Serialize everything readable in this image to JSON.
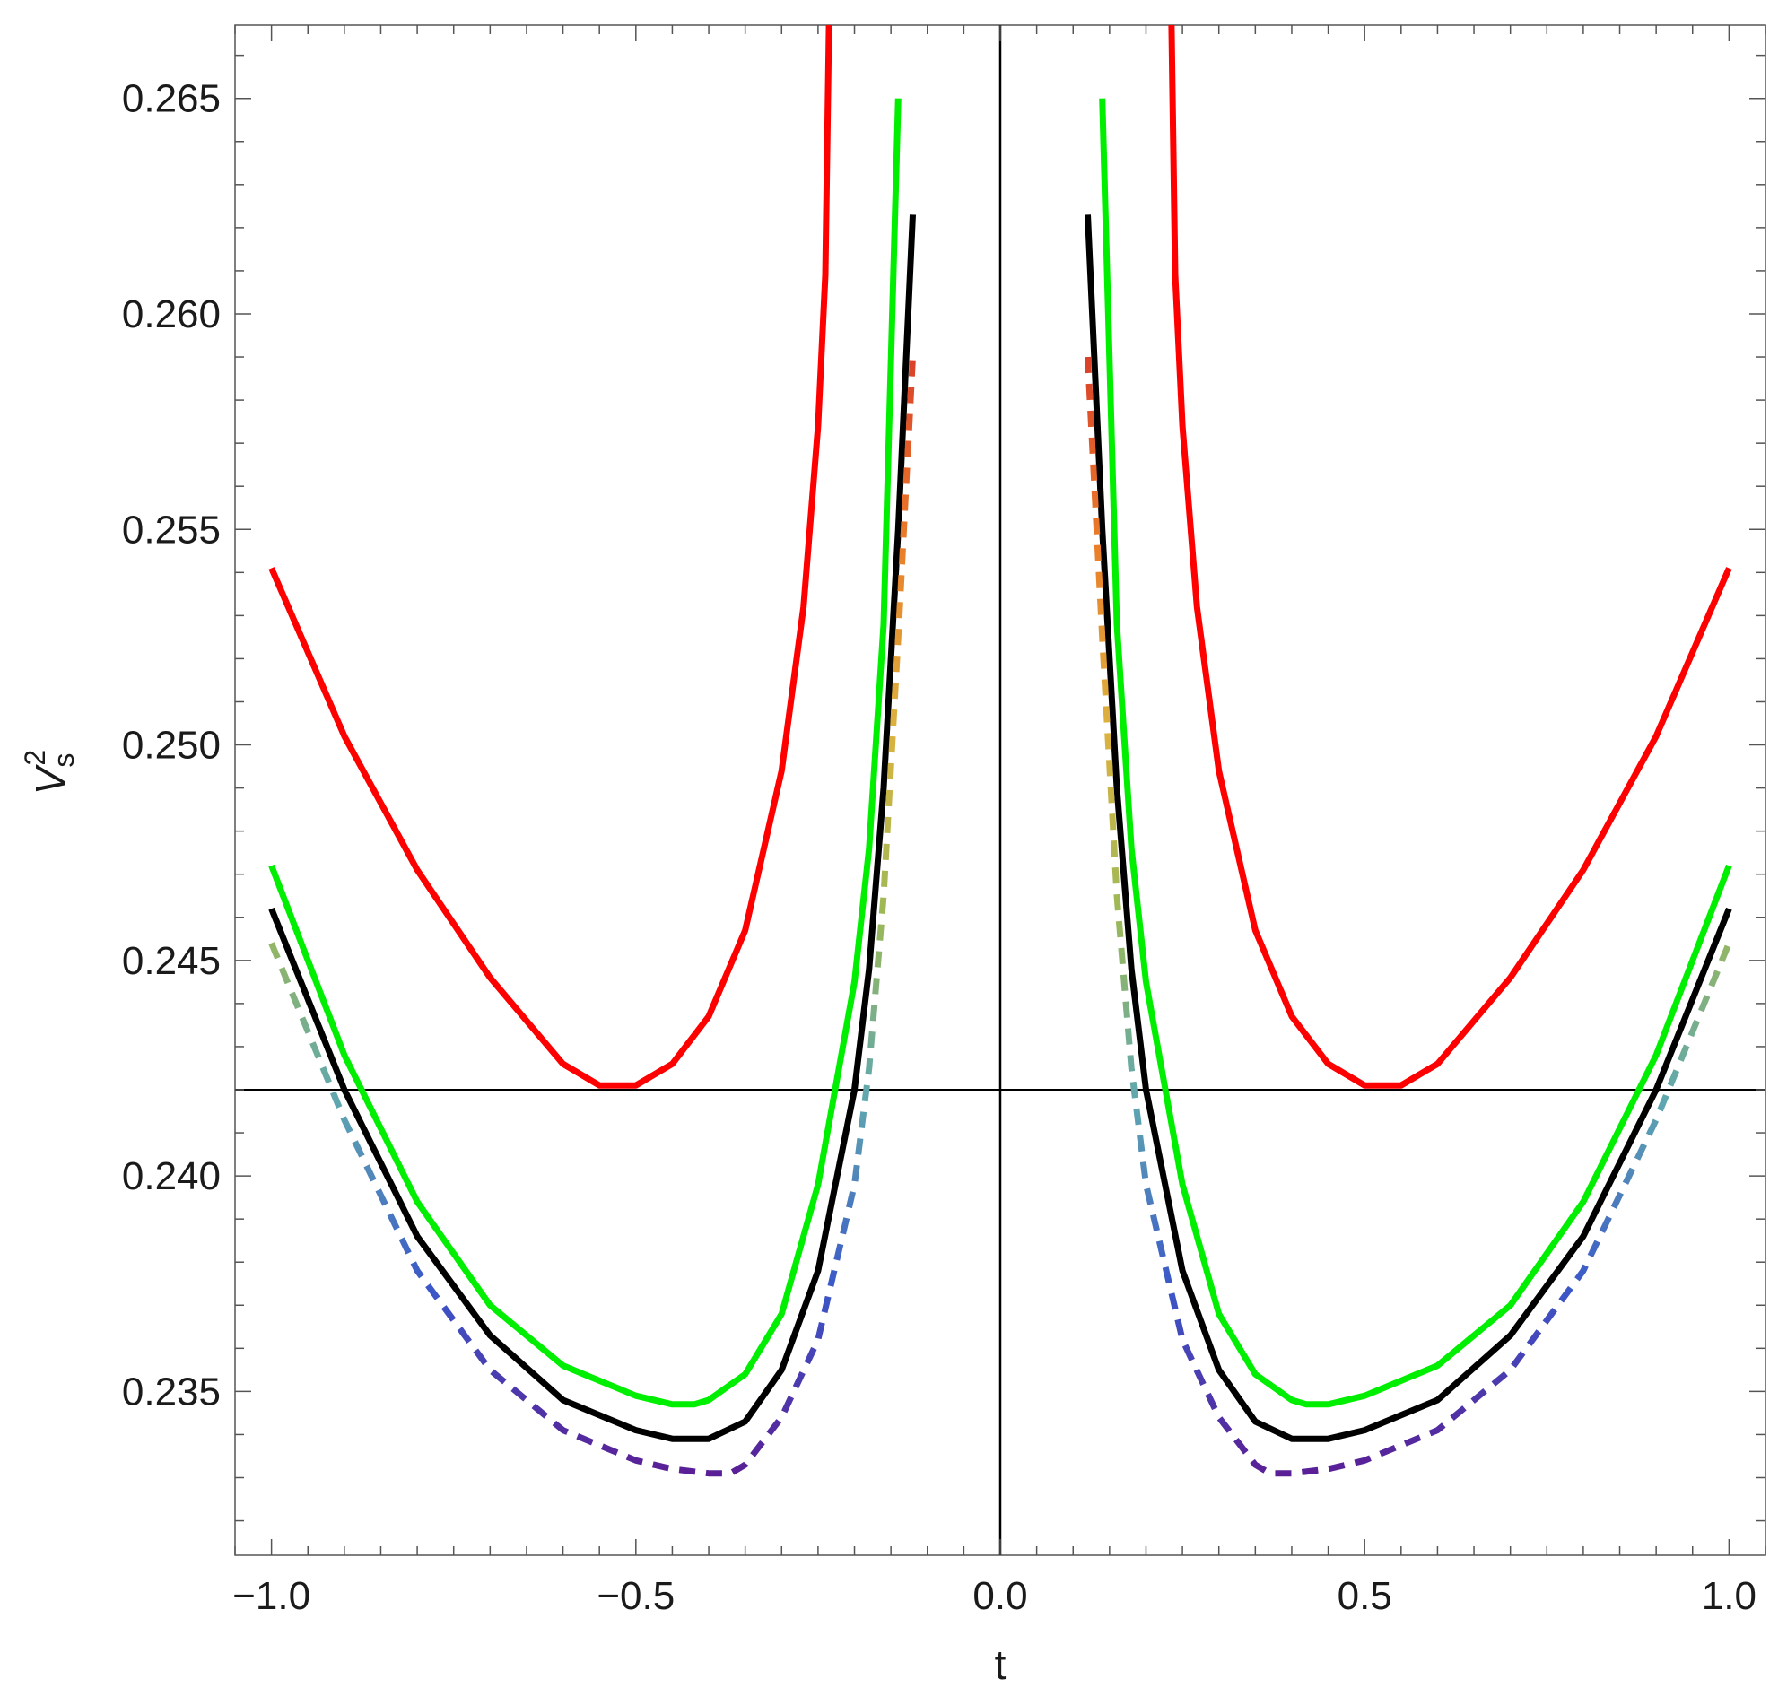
{
  "chart_data": {
    "type": "line",
    "title": "",
    "xlabel": "t",
    "ylabel": {
      "base": "V",
      "sub": "s",
      "sup": "2"
    },
    "xlim": [
      -1.05,
      1.05
    ],
    "ylim": [
      0.2312,
      0.2667
    ],
    "xticks": [
      -1.0,
      -0.5,
      0.0,
      0.5,
      1.0
    ],
    "xtick_labels": [
      "−1.0",
      "−0.5",
      "0.0",
      "0.5",
      "1.0"
    ],
    "yticks": [
      0.235,
      0.24,
      0.245,
      0.25,
      0.255,
      0.26,
      0.265
    ],
    "ytick_labels": [
      "0.235",
      "0.240",
      "0.245",
      "0.250",
      "0.255",
      "0.260",
      "0.265"
    ],
    "reference_lines": [
      {
        "orientation": "horizontal",
        "value": 0.242,
        "color": "#000000"
      },
      {
        "orientation": "vertical",
        "value": 0.0,
        "color": "#000000"
      }
    ],
    "grid": false,
    "legend": "none",
    "series": [
      {
        "color": "#ff0000",
        "style": "solid",
        "x": [
          -1.0,
          -0.9,
          -0.8,
          -0.7,
          -0.6,
          -0.55,
          -0.5,
          -0.45,
          -0.4,
          -0.35,
          -0.3,
          -0.27,
          -0.25,
          -0.24,
          -0.235
        ],
        "y": [
          0.2541,
          0.2502,
          0.2471,
          0.2446,
          0.2426,
          0.2421,
          0.2421,
          0.2426,
          0.2437,
          0.2457,
          0.2494,
          0.2532,
          0.2574,
          0.2609,
          0.2668
        ],
        "mirror": true
      },
      {
        "color": "#00ee00",
        "style": "solid",
        "x": [
          -1.0,
          -0.9,
          -0.8,
          -0.7,
          -0.6,
          -0.5,
          -0.45,
          -0.42,
          -0.4,
          -0.35,
          -0.3,
          -0.25,
          -0.2,
          -0.18,
          -0.16,
          -0.14
        ],
        "y": [
          0.2472,
          0.2428,
          0.2394,
          0.237,
          0.2356,
          0.2349,
          0.2347,
          0.2347,
          0.2348,
          0.2354,
          0.2368,
          0.2398,
          0.2445,
          0.2476,
          0.2528,
          0.265
        ],
        "mirror": true
      },
      {
        "color": "#000000",
        "style": "solid",
        "x": [
          -1.0,
          -0.9,
          -0.8,
          -0.7,
          -0.6,
          -0.5,
          -0.45,
          -0.4,
          -0.35,
          -0.3,
          -0.25,
          -0.2,
          -0.18,
          -0.16,
          -0.14,
          -0.12
        ],
        "y": [
          0.2462,
          0.242,
          0.2386,
          0.2363,
          0.2348,
          0.2341,
          0.2339,
          0.2339,
          0.2343,
          0.2355,
          0.2378,
          0.242,
          0.2448,
          0.249,
          0.255,
          0.2623
        ],
        "mirror": true
      },
      {
        "color": "gradient",
        "style": "dashed",
        "gradient": [
          "#5a1f96",
          "#3b58c8",
          "#5fa7b0",
          "#9cb957",
          "#dcb23f",
          "#ea7d2a",
          "#d9402a"
        ],
        "x": [
          -1.0,
          -0.9,
          -0.8,
          -0.7,
          -0.6,
          -0.5,
          -0.45,
          -0.4,
          -0.37,
          -0.35,
          -0.3,
          -0.25,
          -0.2,
          -0.18,
          -0.16,
          -0.14,
          -0.12
        ],
        "y": [
          0.2454,
          0.2413,
          0.2378,
          0.2355,
          0.2341,
          0.2334,
          0.2332,
          0.2331,
          0.2331,
          0.2333,
          0.2344,
          0.2362,
          0.2398,
          0.2425,
          0.2465,
          0.2525,
          0.259
        ],
        "mirror": true
      }
    ]
  }
}
